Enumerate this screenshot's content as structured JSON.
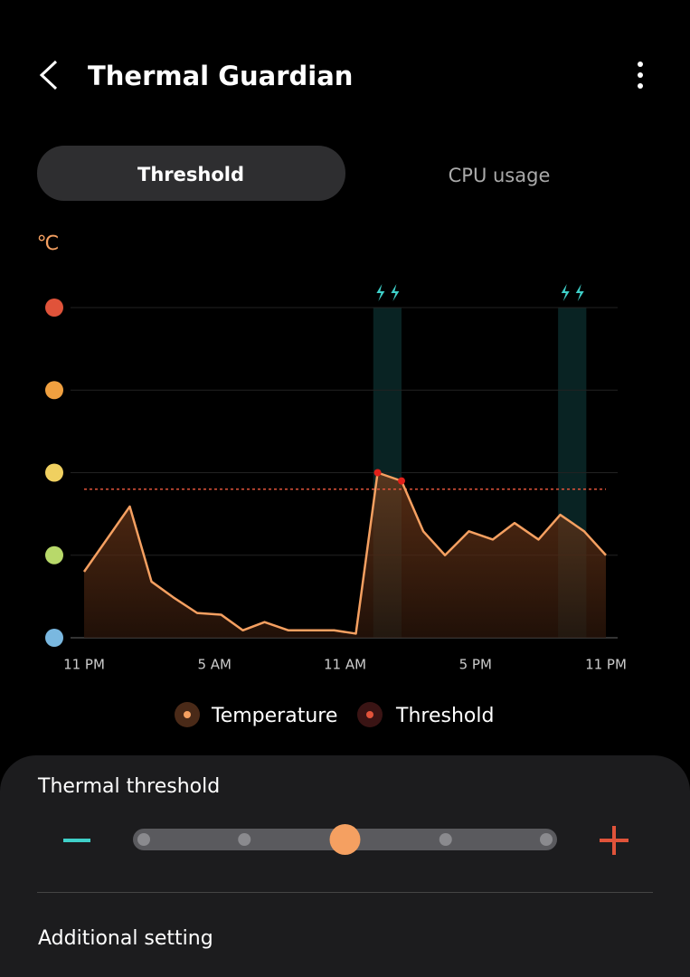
{
  "header": {
    "title": "Thermal Guardian"
  },
  "tabs": [
    "Threshold",
    "CPU usage"
  ],
  "chart_data": {
    "type": "line",
    "y_unit": "℃",
    "xlim": [
      0,
      24
    ],
    "xticks": [
      {
        "value": 0,
        "label": "11 PM"
      },
      {
        "value": 6,
        "label": "5 AM"
      },
      {
        "value": 12,
        "label": "11 AM"
      },
      {
        "value": 18,
        "label": "5 PM"
      },
      {
        "value": 24,
        "label": "11 PM"
      }
    ],
    "ylim": [
      0,
      4
    ],
    "yticks": [
      0,
      1,
      2,
      3,
      4
    ],
    "grid": true,
    "highlight_ranges": [
      [
        13.3,
        14.6
      ],
      [
        21.8,
        23.1
      ]
    ],
    "series": [
      {
        "name": "Temperature",
        "color": "#f5a061",
        "x": [
          0,
          2.1,
          3.1,
          4.1,
          5.2,
          6.3,
          7.3,
          8.3,
          9.4,
          11.5,
          12.5,
          13.5,
          14.6,
          15.6,
          16.6,
          17.7,
          18.8,
          19.8,
          20.9,
          21.9,
          23.0,
          24
        ],
        "values": [
          0.8,
          1.59,
          0.68,
          0.49,
          0.3,
          0.28,
          0.09,
          0.19,
          0.09,
          0.09,
          0.05,
          2.0,
          1.9,
          1.29,
          1.0,
          1.29,
          1.19,
          1.39,
          1.19,
          1.49,
          1.29,
          1.0
        ]
      },
      {
        "name": "Threshold",
        "color": "#e0533a",
        "x": [
          0,
          24
        ],
        "values": [
          1.8,
          1.8
        ]
      }
    ]
  },
  "settings": {
    "label": "Thermal threshold",
    "slider": {
      "steps": 5,
      "selected": 2
    },
    "additional": "Additional setting"
  }
}
